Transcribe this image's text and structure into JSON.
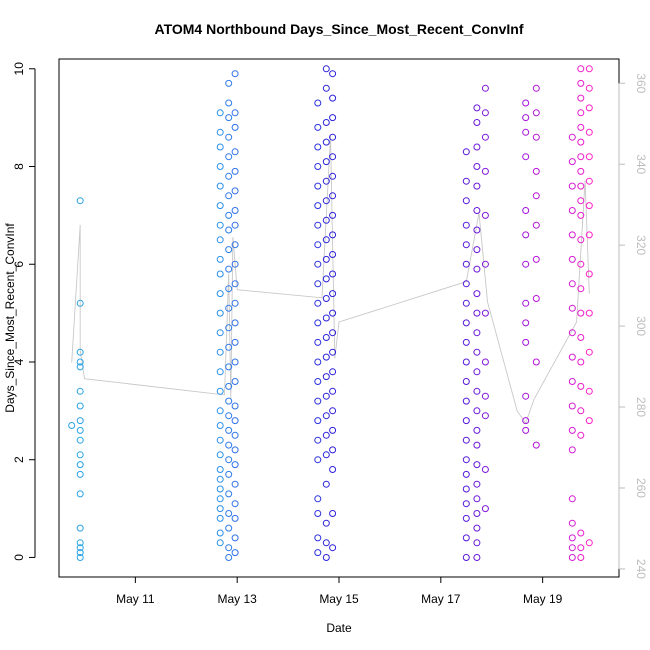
{
  "chart_data": {
    "type": "scatter",
    "title": "ATOM4 Northbound Days_Since_Most_Recent_ConvInf",
    "xlabel": "Date",
    "ylabel": "Days_Since_Most_Recent_ConvInf",
    "xlim": [
      "2020-05-09 12:00",
      "2020-05-20 12:00"
    ],
    "ylim": [
      -0.4,
      10.2
    ],
    "y2lim": [
      238,
      366
    ],
    "x_ticks": [
      {
        "label": "May 11",
        "value": "2020-05-11"
      },
      {
        "label": "May 13",
        "value": "2020-05-13"
      },
      {
        "label": "May 15",
        "value": "2020-05-15"
      },
      {
        "label": "May 17",
        "value": "2020-05-17"
      },
      {
        "label": "May 19",
        "value": "2020-05-19"
      }
    ],
    "y_ticks": [
      "0",
      "2",
      "4",
      "6",
      "8",
      "10"
    ],
    "y2_ticks": [
      "240",
      "260",
      "280",
      "300",
      "320",
      "340",
      "360"
    ],
    "color_gradient": [
      "#29a3e6",
      "#2f6ce8",
      "#2c1fd8",
      "#6a18d8",
      "#b514d8",
      "#ff1fc8"
    ],
    "series": [
      {
        "x": "2020-05-09 22:00",
        "y": [
          0.0,
          0.1,
          0.2,
          0.3,
          0.6,
          1.3,
          1.7,
          1.9,
          2.1,
          2.4,
          2.6,
          2.8,
          3.1,
          3.4,
          3.9,
          4.0,
          4.2,
          5.2,
          7.3
        ],
        "color": "#29a3e6"
      },
      {
        "x": "2020-05-09 18:00",
        "y": [
          2.7
        ],
        "color": "#29a3e6"
      },
      {
        "x": "2020-05-12 16:00",
        "y": [
          0.3,
          0.5,
          0.8,
          1.0,
          1.2,
          1.4,
          1.6,
          1.8,
          2.1,
          2.4,
          2.7,
          3.0,
          3.4,
          3.8,
          4.2,
          4.6,
          5.0,
          5.4,
          5.8,
          6.1,
          6.5,
          6.8,
          7.2,
          7.6,
          8.0,
          8.4,
          8.7,
          9.1
        ],
        "color": "#2a8fe8"
      },
      {
        "x": "2020-05-12 20:00",
        "y": [
          0.0,
          0.2,
          0.6,
          0.9,
          1.3,
          1.7,
          2.0,
          2.3,
          2.6,
          2.9,
          3.2,
          3.5,
          3.9,
          4.3,
          4.7,
          5.1,
          5.5,
          5.9,
          6.3,
          6.7,
          7.0,
          7.4,
          7.8,
          8.2,
          8.6,
          9.0,
          9.3,
          9.7
        ],
        "color": "#2f7ce8"
      },
      {
        "x": "2020-05-12 23:00",
        "y": [
          0.1,
          0.4,
          0.8,
          1.1,
          1.5,
          1.9,
          2.2,
          2.5,
          2.8,
          3.1,
          3.6,
          4.0,
          4.4,
          4.8,
          5.2,
          5.6,
          6.0,
          6.4,
          6.8,
          7.1,
          7.5,
          7.9,
          8.3,
          8.8,
          9.1,
          9.9
        ],
        "color": "#2f70e8"
      },
      {
        "x": "2020-05-14 14:00",
        "y": [
          0.1,
          0.4,
          0.9,
          1.2,
          2.0,
          2.4,
          2.8,
          3.2,
          3.6,
          4.0,
          4.4,
          4.8,
          5.2,
          5.6,
          6.0,
          6.4,
          6.8,
          7.2,
          7.6,
          8.0,
          8.4,
          8.8,
          9.3
        ],
        "color": "#2c32dc"
      },
      {
        "x": "2020-05-14 18:00",
        "y": [
          0.0,
          0.3,
          0.7,
          1.5,
          2.1,
          2.5,
          2.9,
          3.3,
          3.7,
          4.1,
          4.5,
          4.9,
          5.3,
          5.7,
          6.1,
          6.5,
          6.9,
          7.3,
          7.7,
          8.1,
          8.5,
          8.9,
          9.6,
          10.0
        ],
        "color": "#2c22d8"
      },
      {
        "x": "2020-05-14 21:00",
        "y": [
          0.2,
          0.9,
          1.8,
          2.2,
          2.6,
          3.0,
          3.4,
          3.8,
          4.2,
          4.6,
          5.0,
          5.4,
          5.8,
          6.2,
          6.6,
          7.0,
          7.4,
          7.8,
          8.2,
          8.6,
          9.0,
          9.4,
          9.9
        ],
        "color": "#2c1fd8"
      },
      {
        "x": "2020-05-17 12:00",
        "y": [
          0.0,
          0.4,
          0.8,
          1.1,
          1.4,
          1.7,
          2.0,
          2.4,
          2.8,
          3.2,
          3.6,
          4.0,
          4.4,
          4.8,
          5.2,
          5.6,
          6.0,
          6.4,
          6.8,
          7.3,
          7.7,
          8.3
        ],
        "color": "#5518d8"
      },
      {
        "x": "2020-05-17 17:00",
        "y": [
          0.0,
          0.3,
          0.6,
          0.9,
          1.2,
          1.5,
          1.9,
          2.3,
          2.6,
          3.0,
          3.4,
          3.8,
          4.2,
          4.6,
          5.0,
          5.4,
          5.9,
          6.3,
          6.7,
          7.1,
          7.6,
          8.0,
          8.4,
          8.9,
          9.2
        ],
        "color": "#6a18d8"
      },
      {
        "x": "2020-05-17 21:00",
        "y": [
          1.0,
          1.8,
          2.9,
          3.3,
          4.0,
          5.0,
          6.0,
          7.0,
          7.9,
          8.6,
          9.1,
          9.6
        ],
        "color": "#8018d8"
      },
      {
        "x": "2020-05-18 16:00",
        "y": [
          2.6,
          2.8,
          3.3,
          4.4,
          4.8,
          5.2,
          6.0,
          6.6,
          7.1,
          8.2,
          8.7,
          9.0,
          9.3
        ],
        "color": "#a514d8"
      },
      {
        "x": "2020-05-18 21:00",
        "y": [
          2.3,
          4.0,
          5.3,
          6.1,
          6.8,
          7.4,
          7.9,
          8.6,
          9.1,
          9.6
        ],
        "color": "#b514d8"
      },
      {
        "x": "2020-05-19 14:00",
        "y": [
          0.0,
          0.2,
          0.4,
          0.7,
          1.2,
          2.2,
          2.6,
          3.1,
          3.6,
          4.1,
          4.6,
          5.1,
          5.6,
          6.1,
          6.6,
          7.1,
          7.6,
          8.1,
          8.6
        ],
        "color": "#d41ad0"
      },
      {
        "x": "2020-05-19 18:00",
        "y": [
          0.0,
          0.2,
          0.5,
          2.5,
          3.0,
          3.5,
          4.0,
          4.5,
          5.0,
          5.5,
          6.0,
          6.5,
          7.0,
          7.3,
          7.6,
          7.9,
          8.2,
          8.5,
          8.8,
          9.1,
          9.4,
          9.7,
          10.0
        ],
        "color": "#ea1ccb"
      },
      {
        "x": "2020-05-19 22:00",
        "y": [
          0.3,
          2.8,
          3.4,
          4.2,
          5.0,
          5.8,
          6.6,
          7.2,
          7.7,
          8.2,
          8.7,
          9.2,
          9.6,
          10.0
        ],
        "color": "#ff1fc8"
      }
    ],
    "secondary_trace": {
      "description_y2_units": true,
      "x": [
        "2020-05-09 18:00",
        "2020-05-09 22:00",
        "2020-05-09 22:00",
        "2020-05-10 00:00",
        "2020-05-12 18:00",
        "2020-05-12 20:00",
        "2020-05-12 21:00",
        "2020-05-12 22:00",
        "2020-05-13 00:00",
        "2020-05-14 16:00",
        "2020-05-14 20:00",
        "2020-05-14 22:00",
        "2020-05-15 00:00",
        "2020-05-17 12:00",
        "2020-05-17 18:00",
        "2020-05-17 22:00",
        "2020-05-18 12:00",
        "2020-05-18 16:00",
        "2020-05-18 20:00",
        "2020-05-19 16:00",
        "2020-05-19 20:00",
        "2020-05-19 22:00"
      ],
      "y": [
        291,
        325,
        294,
        287,
        283,
        313,
        282,
        322,
        309,
        307,
        347,
        292,
        301,
        311,
        328,
        306,
        279,
        276,
        282,
        301,
        336,
        308
      ]
    }
  }
}
